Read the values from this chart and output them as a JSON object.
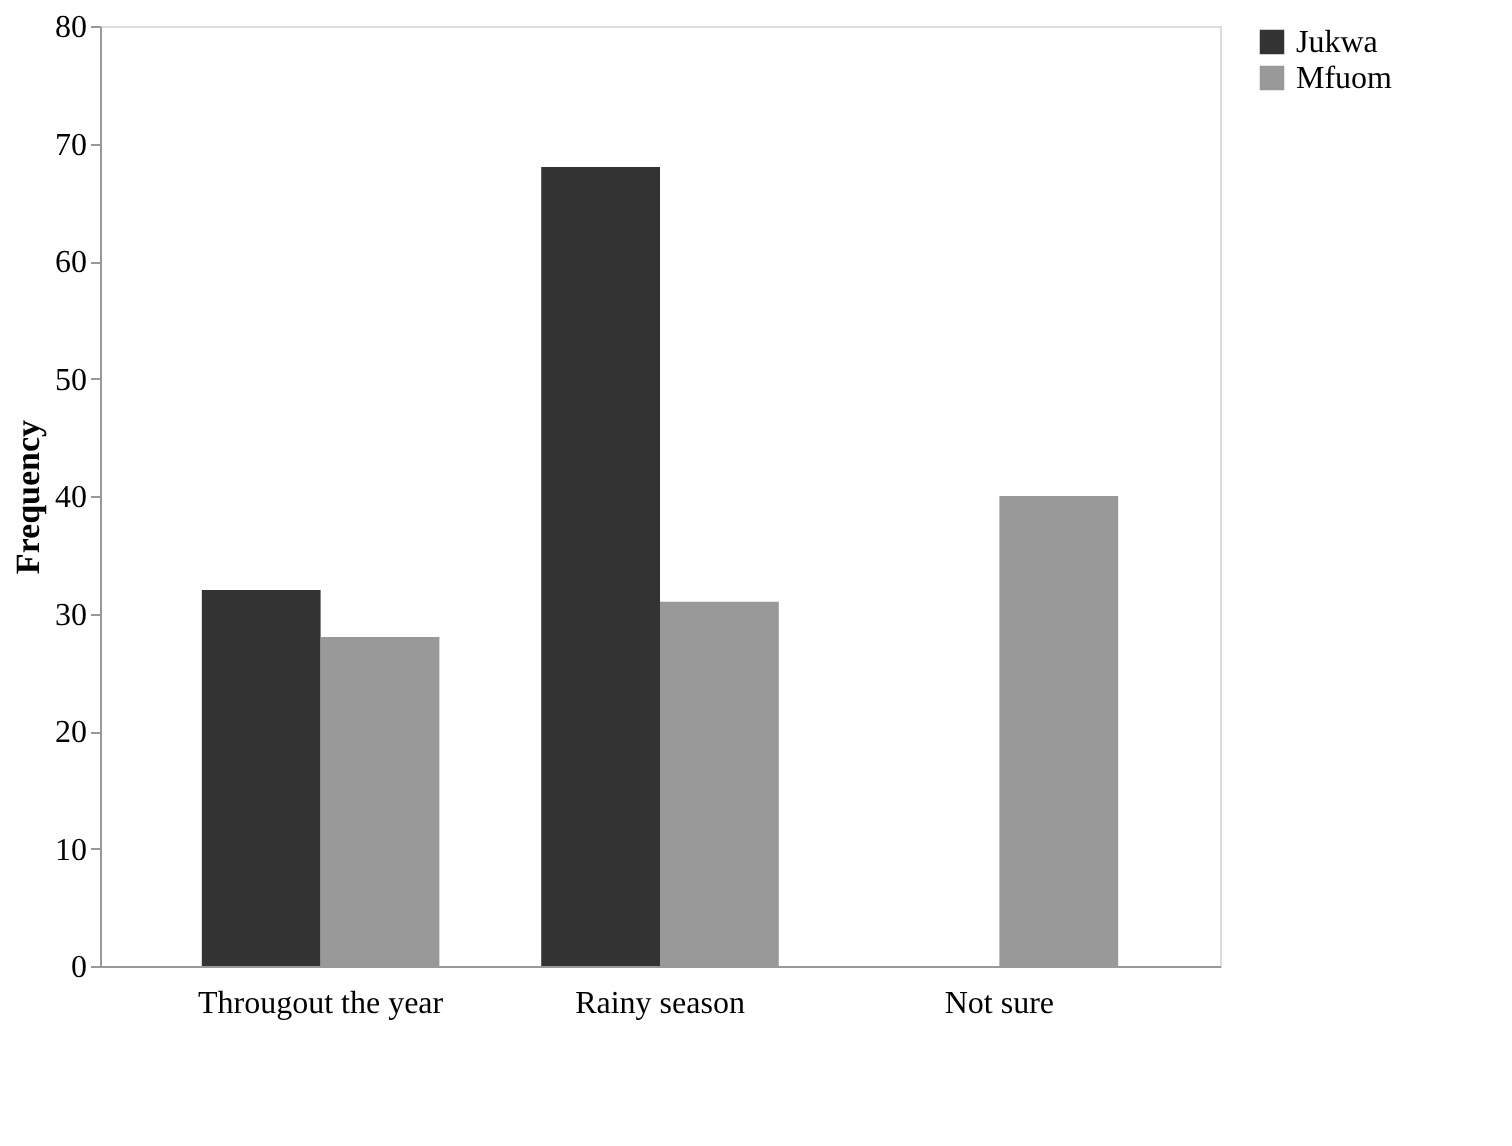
{
  "chart_data": {
    "type": "bar",
    "ylabel": "Frequency",
    "categories": [
      "Througout the year",
      "Rainy season",
      "Not sure"
    ],
    "series": [
      {
        "name": "Jukwa",
        "color": "#333333",
        "values": [
          32,
          68,
          0
        ]
      },
      {
        "name": "Mfuom",
        "color": "#999999",
        "values": [
          28,
          31,
          40
        ]
      }
    ],
    "ylim": [
      0,
      80
    ],
    "yticks": [
      0,
      10,
      20,
      30,
      40,
      50,
      60,
      70,
      80
    ],
    "grid": false,
    "legend": "right"
  }
}
